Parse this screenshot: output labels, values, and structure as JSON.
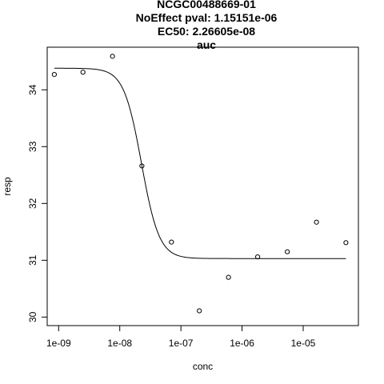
{
  "chart_data": {
    "type": "scatter",
    "title_lines": [
      "NCGC00488669-01",
      "NoEffect pval:  1.15151e-06",
      "EC50:  2.26605e-08",
      "auc"
    ],
    "xlabel": "conc",
    "ylabel": "resp",
    "x_scale": "log10",
    "xlim": [
      6.5e-10,
      8e-05
    ],
    "ylim": [
      29.85,
      34.75
    ],
    "x_ticks": [
      1e-09,
      1e-08,
      1e-07,
      1e-06,
      1e-05
    ],
    "x_tick_labels": [
      "1e-09",
      "1e-08",
      "1e-07",
      "1e-06",
      "1e-05"
    ],
    "y_ticks": [
      30,
      31,
      32,
      33,
      34
    ],
    "y_tick_labels": [
      "30",
      "31",
      "32",
      "33",
      "34"
    ],
    "grid": false,
    "points": [
      {
        "x": 8.5e-10,
        "y": 34.27
      },
      {
        "x": 2.5e-09,
        "y": 34.31
      },
      {
        "x": 7.6e-09,
        "y": 34.59
      },
      {
        "x": 2.3e-08,
        "y": 32.66
      },
      {
        "x": 7e-08,
        "y": 31.32
      },
      {
        "x": 2e-07,
        "y": 30.11
      },
      {
        "x": 6e-07,
        "y": 30.7
      },
      {
        "x": 1.8e-06,
        "y": 31.06
      },
      {
        "x": 5.5e-06,
        "y": 31.15
      },
      {
        "x": 1.65e-05,
        "y": 31.67
      },
      {
        "x": 5e-05,
        "y": 31.31
      }
    ],
    "fit_curve": {
      "model": "hill",
      "top": 34.38,
      "bottom": 31.03,
      "ec50": 2.26605e-08,
      "hill_slope": 3.0,
      "x_range": [
        8.5e-10,
        5e-05
      ]
    }
  }
}
